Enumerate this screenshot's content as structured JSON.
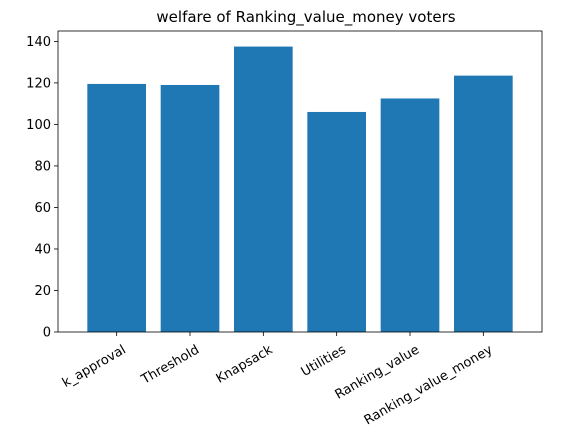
{
  "chart_data": {
    "type": "bar",
    "title": "welfare of Ranking_value_money voters",
    "xlabel": "",
    "ylabel": "",
    "categories": [
      "k_approval",
      "Threshold",
      "Knapsack",
      "Utilities",
      "Ranking_value",
      "Ranking_value_money"
    ],
    "values": [
      119.5,
      119,
      137.5,
      106,
      112.5,
      123.5
    ],
    "ylim": [
      0,
      145
    ],
    "yticks": [
      0,
      20,
      40,
      60,
      80,
      100,
      120,
      140
    ],
    "bar_color": "#1f77b4",
    "grid": false,
    "legend": "none",
    "xtick_rotation": -30
  }
}
